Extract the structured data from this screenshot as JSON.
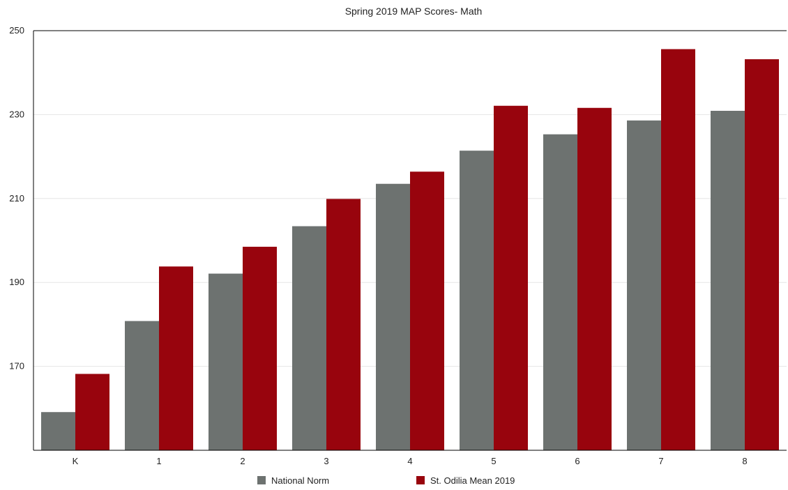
{
  "chart_data": {
    "type": "bar",
    "title": "Spring 2019 MAP Scores- Math",
    "xlabel": "",
    "ylabel": "",
    "categories": [
      "K",
      "1",
      "2",
      "3",
      "4",
      "5",
      "6",
      "7",
      "8"
    ],
    "ylim": [
      150,
      250
    ],
    "yticks": [
      170,
      190,
      210,
      230,
      250
    ],
    "grid": true,
    "legend_position": "bottom",
    "series": [
      {
        "name": "National Norm",
        "color": "#6d7270",
        "values": [
          159.1,
          180.8,
          192.1,
          203.4,
          213.5,
          221.4,
          225.3,
          228.6,
          230.9
        ]
      },
      {
        "name": "St. Odilia Mean 2019",
        "color": "#98040d",
        "values": [
          168.2,
          193.8,
          198.5,
          209.9,
          216.4,
          232.1,
          231.6,
          245.6,
          243.2
        ]
      }
    ]
  }
}
